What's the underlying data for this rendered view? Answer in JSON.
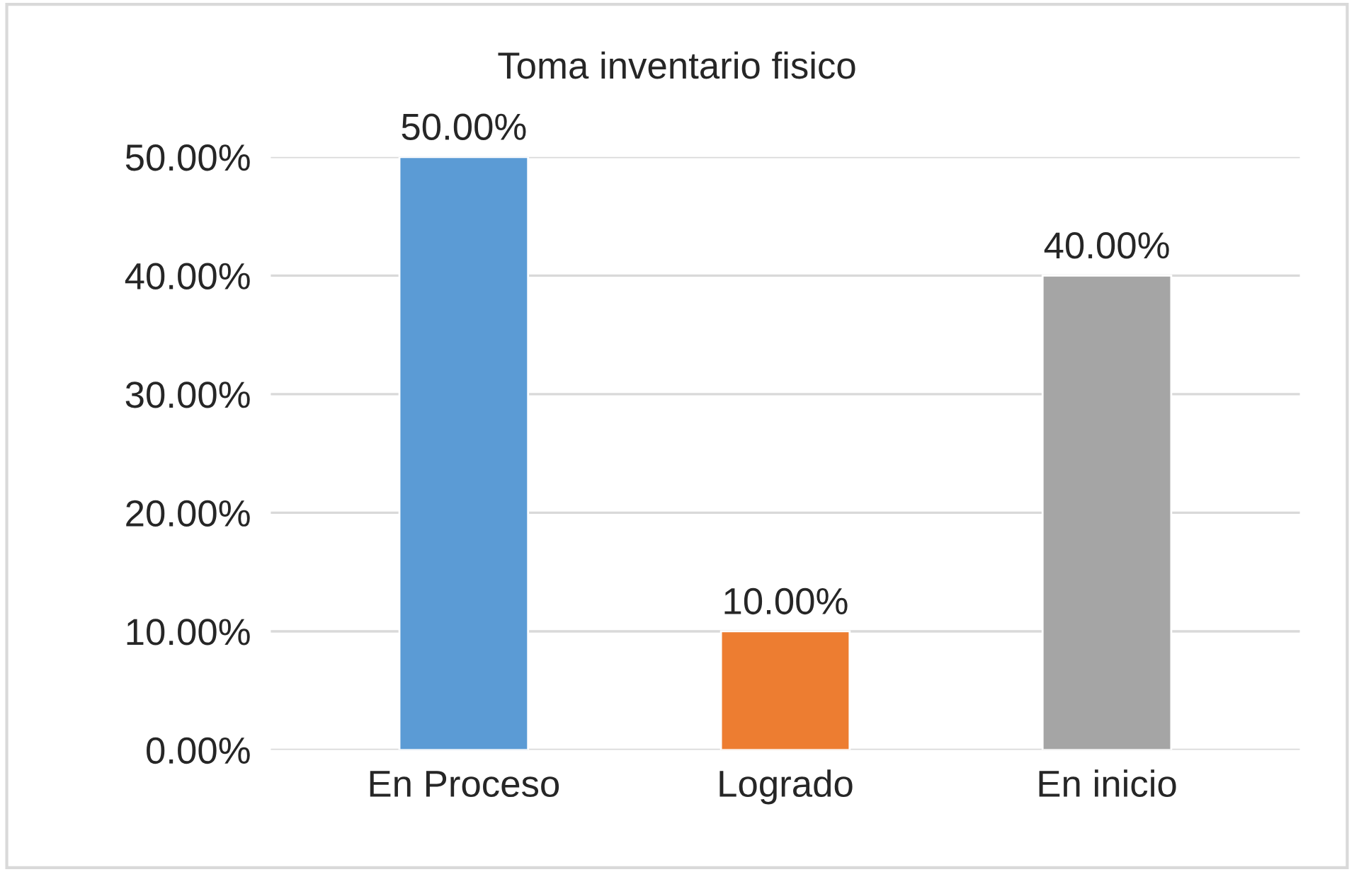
{
  "chart_data": {
    "type": "bar",
    "title": "Toma inventario fisico",
    "categories": [
      "En Proceso",
      "Logrado",
      "En inicio"
    ],
    "values": [
      50,
      10,
      40
    ],
    "colors": [
      "#5b9bd5",
      "#ed7d31",
      "#a5a5a5"
    ],
    "value_labels": [
      "50.00%",
      "10.00%",
      "40.00%"
    ],
    "ylim": [
      0,
      50
    ],
    "yticks": [
      {
        "value": 0,
        "label": "0.00%"
      },
      {
        "value": 10,
        "label": "10.00%"
      },
      {
        "value": 20,
        "label": "20.00%"
      },
      {
        "value": 30,
        "label": "30.00%"
      },
      {
        "value": 40,
        "label": "40.00%"
      },
      {
        "value": 50,
        "label": "50.00%"
      }
    ],
    "grid": "y",
    "legend": false
  }
}
